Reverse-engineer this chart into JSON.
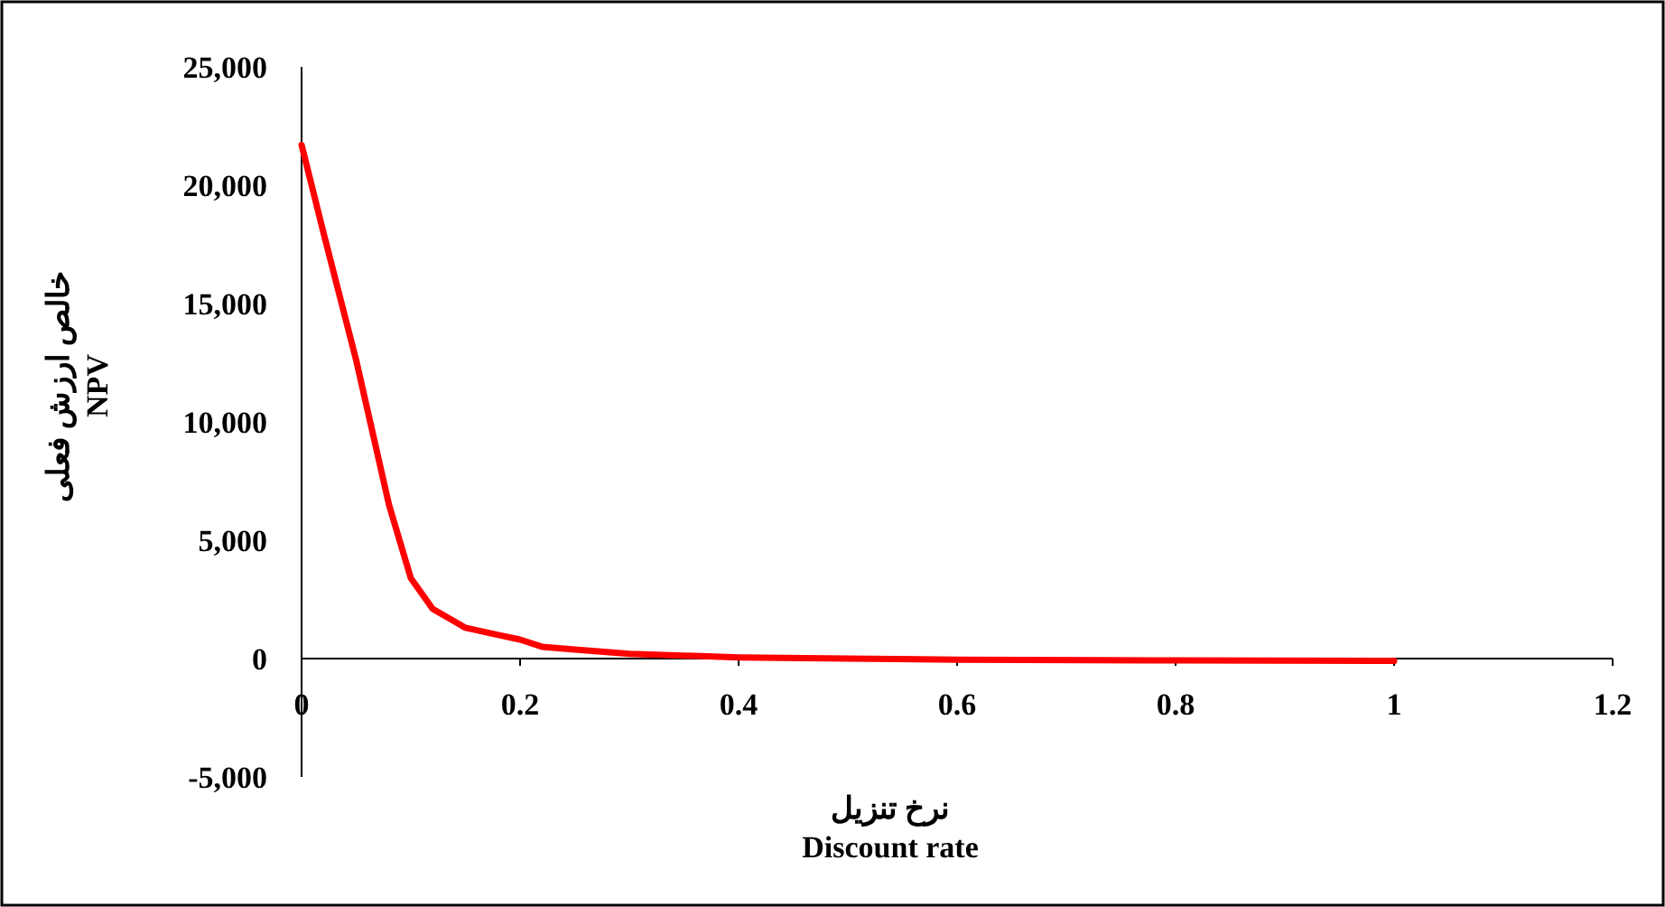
{
  "chart_data": {
    "type": "line",
    "xlabel": "نرخ تنزیل\nDiscount rate",
    "ylabel": "خالص ارزش فعلی\nNPV",
    "x": [
      0,
      0.02,
      0.05,
      0.08,
      0.1,
      0.12,
      0.15,
      0.18,
      0.2,
      0.22,
      0.25,
      0.3,
      0.4,
      0.5,
      0.6,
      0.8,
      1
    ],
    "series": [
      {
        "color": "#ff0000",
        "values": [
          21700,
          18000,
          12600,
          6500,
          3400,
          2100,
          1300,
          1000,
          800,
          500,
          380,
          200,
          50,
          0,
          -50,
          -80,
          -100
        ]
      }
    ],
    "xlim": [
      0,
      1.2
    ],
    "ylim": [
      -5000,
      25000
    ],
    "xticks": [
      0,
      0.2,
      0.4,
      0.6,
      0.8,
      1,
      1.2
    ],
    "yticks": [
      {
        "value": -5000,
        "label": "-5,000"
      },
      {
        "value": 0,
        "label": "0"
      },
      {
        "value": 5000,
        "label": "5,000"
      },
      {
        "value": 10000,
        "label": "10,000"
      },
      {
        "value": 15000,
        "label": "15,000"
      },
      {
        "value": 20000,
        "label": "20,000"
      },
      {
        "value": 25000,
        "label": "25,000"
      }
    ]
  }
}
